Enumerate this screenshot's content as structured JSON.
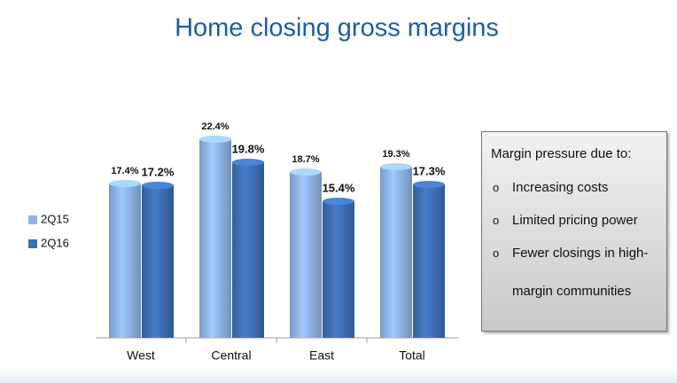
{
  "chart_data": {
    "type": "bar",
    "title": "Home closing gross margins",
    "categories": [
      "West",
      "Central",
      "East",
      "Total"
    ],
    "series": [
      {
        "name": "2Q15",
        "color": "#8fb4e3",
        "values": [
          17.4,
          22.4,
          18.7,
          19.3
        ],
        "value_labels": [
          "17.4%",
          "22.4%",
          "18.7%",
          "19.3%"
        ]
      },
      {
        "name": "2Q16",
        "color": "#3e6fb3",
        "values": [
          17.2,
          19.8,
          15.4,
          17.3
        ],
        "value_labels": [
          "17.2%",
          "19.8%",
          "15.4%",
          "17.3%"
        ]
      }
    ],
    "legend": "left"
  },
  "callout": {
    "heading": "Margin pressure due to:",
    "items": [
      "Increasing costs",
      "Limited pricing power",
      "Fewer closings in high-margin communities"
    ]
  }
}
